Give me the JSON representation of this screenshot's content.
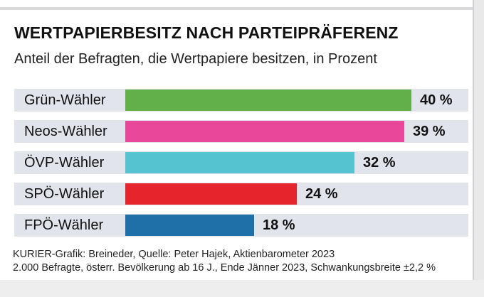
{
  "chart_data": {
    "type": "bar",
    "title": "WERTPAPIERBESITZ NACH PARTEIPRÄFERENZ",
    "subtitle": "Anteil der Befragten, die Wertpapiere besitzen, in Prozent",
    "xlabel": "",
    "ylabel": "",
    "orientation": "horizontal",
    "grid": false,
    "xlim": [
      0,
      40
    ],
    "categories": [
      "Grün-Wähler",
      "Neos-Wähler",
      "ÖVP-Wähler",
      "SPÖ-Wähler",
      "FPÖ-Wähler"
    ],
    "values": [
      40,
      39,
      32,
      24,
      18
    ],
    "value_labels": [
      "40 %",
      "39 %",
      "32 %",
      "24 %",
      "18 %"
    ],
    "colors": [
      "#62b04a",
      "#e8479a",
      "#56c4d0",
      "#e5252b",
      "#1f6fa8"
    ],
    "source_lines": [
      "KURIER-Grafik: Breineder, Quelle: Peter Hajek, Aktienbarometer 2023",
      "2.000 Befragte, österr. Bevölkerung ab 16 J., Ende Jänner 2023, Schwankungsbreite ±2,2 %"
    ]
  }
}
